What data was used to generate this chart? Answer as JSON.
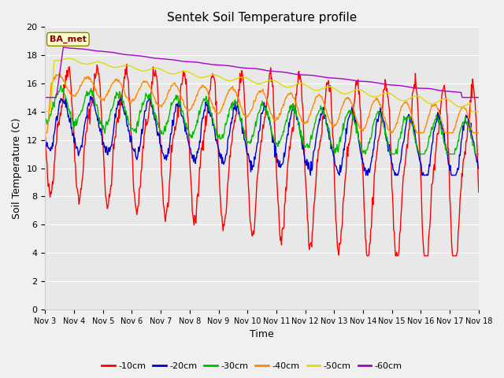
{
  "title": "Sentek Soil Temperature profile",
  "xlabel": "Time",
  "ylabel": "Soil Temperature (C)",
  "ylim": [
    0,
    20
  ],
  "yticks": [
    0,
    2,
    4,
    6,
    8,
    10,
    12,
    14,
    16,
    18,
    20
  ],
  "x_labels": [
    "Nov 3",
    "Nov 4",
    "Nov 5",
    "Nov 6",
    "Nov 7",
    "Nov 8",
    "Nov 9",
    "Nov 10",
    "Nov 11",
    "Nov 12",
    "Nov 13",
    "Nov 14",
    "Nov 15",
    "Nov 16",
    "Nov 17",
    "Nov 18"
  ],
  "legend_label": "BA_met",
  "series_colors": {
    "-10cm": "#ff0000",
    "-20cm": "#0000cc",
    "-30cm": "#00bb00",
    "-40cm": "#ff8800",
    "-50cm": "#dddd00",
    "-60cm": "#aa00cc"
  },
  "plot_bg": "#e8e8e8",
  "fig_bg": "#f0f0f0",
  "title_fontsize": 11,
  "tick_fontsize": 7,
  "axis_label_fontsize": 9,
  "figsize": [
    6.4,
    4.8
  ],
  "dpi": 100
}
